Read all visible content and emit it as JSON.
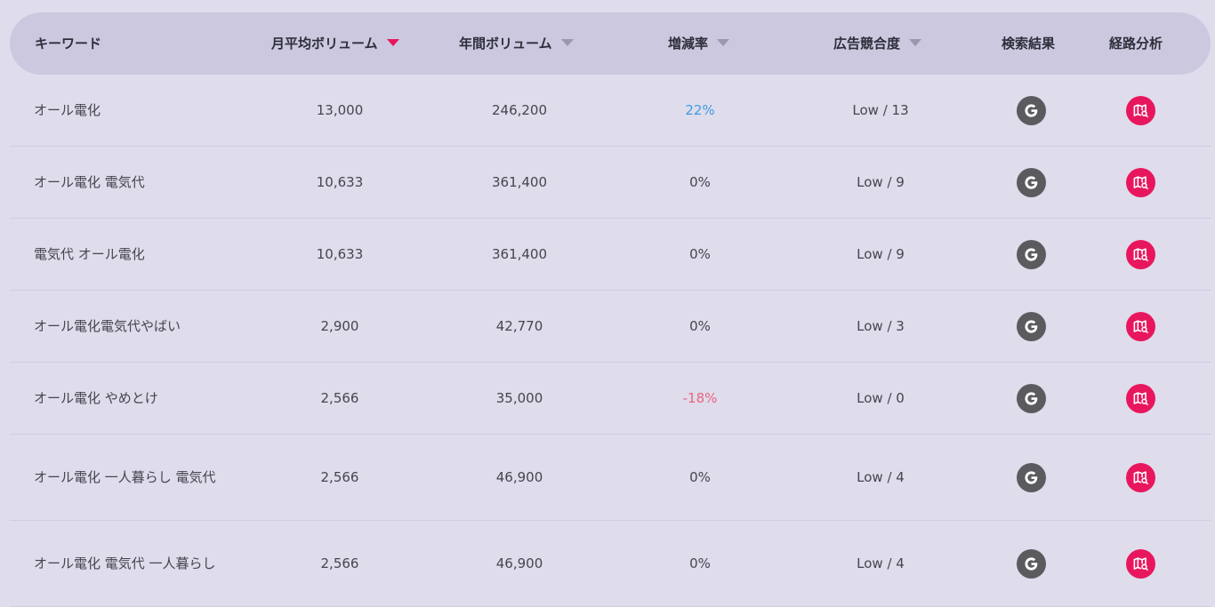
{
  "header": {
    "keyword": "キーワード",
    "monthly": "月平均ボリューム",
    "yearly": "年間ボリューム",
    "rate": "増減率",
    "competition": "広告競合度",
    "search_result": "検索結果",
    "route_analysis": "経路分析"
  },
  "colors": {
    "accent": "#e8175d",
    "rate_positive": "#3d9ce0",
    "rate_negative": "#e8637f",
    "google_button": "#5b5b5f"
  },
  "rows": [
    {
      "keyword": "オール電化",
      "monthly": "13,000",
      "yearly": "246,200",
      "rate": "22%",
      "rate_sign": "pos",
      "competition": "Low / 13"
    },
    {
      "keyword": "オール電化 電気代",
      "monthly": "10,633",
      "yearly": "361,400",
      "rate": "0%",
      "rate_sign": "zero",
      "competition": "Low / 9"
    },
    {
      "keyword": "電気代 オール電化",
      "monthly": "10,633",
      "yearly": "361,400",
      "rate": "0%",
      "rate_sign": "zero",
      "competition": "Low / 9"
    },
    {
      "keyword": "オール電化電気代やばい",
      "monthly": "2,900",
      "yearly": "42,770",
      "rate": "0%",
      "rate_sign": "zero",
      "competition": "Low / 3"
    },
    {
      "keyword": "オール電化 やめとけ",
      "monthly": "2,566",
      "yearly": "35,000",
      "rate": "-18%",
      "rate_sign": "neg",
      "competition": "Low / 0"
    },
    {
      "keyword": "オール電化 一人暮らし 電気代",
      "monthly": "2,566",
      "yearly": "46,900",
      "rate": "0%",
      "rate_sign": "zero",
      "competition": "Low / 4"
    },
    {
      "keyword": "オール電化 電気代 一人暮らし",
      "monthly": "2,566",
      "yearly": "46,900",
      "rate": "0%",
      "rate_sign": "zero",
      "competition": "Low / 4"
    }
  ]
}
